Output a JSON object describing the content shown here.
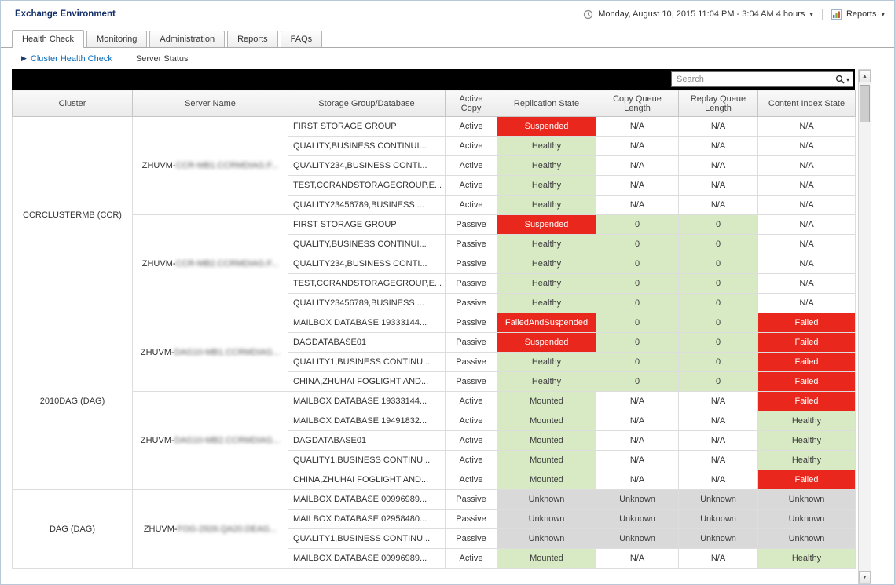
{
  "header": {
    "title": "Exchange Environment",
    "time_range": "Monday, August 10, 2015 11:04 PM - 3:04 AM 4 hours",
    "reports_label": "Reports"
  },
  "tabs": [
    {
      "label": "Health Check",
      "active": true
    },
    {
      "label": "Monitoring",
      "active": false
    },
    {
      "label": "Administration",
      "active": false
    },
    {
      "label": "Reports",
      "active": false
    },
    {
      "label": "FAQs",
      "active": false
    }
  ],
  "subnav": {
    "breadcrumb": "Cluster Health Check",
    "secondary": "Server Status"
  },
  "search": {
    "placeholder": "Search"
  },
  "colors": {
    "red": "#e9271c",
    "green": "#d8eac4",
    "gray": "#d9d9d9",
    "red_text": "#ffffff",
    "cell_text": "#3c3c3c"
  },
  "table": {
    "columns": [
      "Cluster",
      "Server Name",
      "Storage Group/Database",
      "Active Copy",
      "Replication State",
      "Copy Queue Length",
      "Replay Queue Length",
      "Content Index State"
    ],
    "clusters": [
      {
        "name": "CCRCLUSTERMB (CCR)",
        "servers": [
          {
            "prefix": "ZHUVM-",
            "masked": "CCR-MB1.CCRMDIAG.F...",
            "rows": [
              {
                "db": "FIRST STORAGE GROUP",
                "copy": "Active",
                "repl": [
                  "Suspended",
                  "red"
                ],
                "cq": [
                  "N/A",
                  "white"
                ],
                "rq": [
                  "N/A",
                  "white"
                ],
                "ci": [
                  "N/A",
                  "white"
                ]
              },
              {
                "db": "QUALITY,BUSINESS CONTINUI...",
                "copy": "Active",
                "repl": [
                  "Healthy",
                  "green"
                ],
                "cq": [
                  "N/A",
                  "white"
                ],
                "rq": [
                  "N/A",
                  "white"
                ],
                "ci": [
                  "N/A",
                  "white"
                ]
              },
              {
                "db": "QUALITY234,BUSINESS CONTI...",
                "copy": "Active",
                "repl": [
                  "Healthy",
                  "green"
                ],
                "cq": [
                  "N/A",
                  "white"
                ],
                "rq": [
                  "N/A",
                  "white"
                ],
                "ci": [
                  "N/A",
                  "white"
                ]
              },
              {
                "db": "TEST,CCRANDSTORAGEGROUP,E...",
                "copy": "Active",
                "repl": [
                  "Healthy",
                  "green"
                ],
                "cq": [
                  "N/A",
                  "white"
                ],
                "rq": [
                  "N/A",
                  "white"
                ],
                "ci": [
                  "N/A",
                  "white"
                ]
              },
              {
                "db": "QUALITY23456789,BUSINESS ...",
                "copy": "Active",
                "repl": [
                  "Healthy",
                  "green"
                ],
                "cq": [
                  "N/A",
                  "white"
                ],
                "rq": [
                  "N/A",
                  "white"
                ],
                "ci": [
                  "N/A",
                  "white"
                ]
              }
            ]
          },
          {
            "prefix": "ZHUVM-",
            "masked": "CCR-MB2.CCRMDIAG.F...",
            "rows": [
              {
                "db": "FIRST STORAGE GROUP",
                "copy": "Passive",
                "repl": [
                  "Suspended",
                  "red"
                ],
                "cq": [
                  "0",
                  "green"
                ],
                "rq": [
                  "0",
                  "green"
                ],
                "ci": [
                  "N/A",
                  "white"
                ]
              },
              {
                "db": "QUALITY,BUSINESS CONTINUI...",
                "copy": "Passive",
                "repl": [
                  "Healthy",
                  "green"
                ],
                "cq": [
                  "0",
                  "green"
                ],
                "rq": [
                  "0",
                  "green"
                ],
                "ci": [
                  "N/A",
                  "white"
                ]
              },
              {
                "db": "QUALITY234,BUSINESS CONTI...",
                "copy": "Passive",
                "repl": [
                  "Healthy",
                  "green"
                ],
                "cq": [
                  "0",
                  "green"
                ],
                "rq": [
                  "0",
                  "green"
                ],
                "ci": [
                  "N/A",
                  "white"
                ]
              },
              {
                "db": "TEST,CCRANDSTORAGEGROUP,E...",
                "copy": "Passive",
                "repl": [
                  "Healthy",
                  "green"
                ],
                "cq": [
                  "0",
                  "green"
                ],
                "rq": [
                  "0",
                  "green"
                ],
                "ci": [
                  "N/A",
                  "white"
                ]
              },
              {
                "db": "QUALITY23456789,BUSINESS ...",
                "copy": "Passive",
                "repl": [
                  "Healthy",
                  "green"
                ],
                "cq": [
                  "0",
                  "green"
                ],
                "rq": [
                  "0",
                  "green"
                ],
                "ci": [
                  "N/A",
                  "white"
                ]
              }
            ]
          }
        ]
      },
      {
        "name": "2010DAG (DAG)",
        "servers": [
          {
            "prefix": "ZHUVM-",
            "masked": "DAG10-MB1.CCRMDIAG...",
            "rows": [
              {
                "db": "MAILBOX DATABASE 19333144...",
                "copy": "Passive",
                "repl": [
                  "FailedAndSuspended",
                  "red"
                ],
                "cq": [
                  "0",
                  "green"
                ],
                "rq": [
                  "0",
                  "green"
                ],
                "ci": [
                  "Failed",
                  "red"
                ]
              },
              {
                "db": "DAGDATABASE01",
                "copy": "Passive",
                "repl": [
                  "Suspended",
                  "red"
                ],
                "cq": [
                  "0",
                  "green"
                ],
                "rq": [
                  "0",
                  "green"
                ],
                "ci": [
                  "Failed",
                  "red"
                ]
              },
              {
                "db": "QUALITY1,BUSINESS CONTINU...",
                "copy": "Passive",
                "repl": [
                  "Healthy",
                  "green"
                ],
                "cq": [
                  "0",
                  "green"
                ],
                "rq": [
                  "0",
                  "green"
                ],
                "ci": [
                  "Failed",
                  "red"
                ]
              },
              {
                "db": "CHINA,ZHUHAI FOGLIGHT AND...",
                "copy": "Passive",
                "repl": [
                  "Healthy",
                  "green"
                ],
                "cq": [
                  "0",
                  "green"
                ],
                "rq": [
                  "0",
                  "green"
                ],
                "ci": [
                  "Failed",
                  "red"
                ]
              }
            ]
          },
          {
            "prefix": "ZHUVM-",
            "masked": "DAG10-MB2.CCRMDIAG...",
            "rows": [
              {
                "db": "MAILBOX DATABASE 19333144...",
                "copy": "Active",
                "repl": [
                  "Mounted",
                  "green"
                ],
                "cq": [
                  "N/A",
                  "white"
                ],
                "rq": [
                  "N/A",
                  "white"
                ],
                "ci": [
                  "Failed",
                  "red"
                ]
              },
              {
                "db": "MAILBOX DATABASE 19491832...",
                "copy": "Active",
                "repl": [
                  "Mounted",
                  "green"
                ],
                "cq": [
                  "N/A",
                  "white"
                ],
                "rq": [
                  "N/A",
                  "white"
                ],
                "ci": [
                  "Healthy",
                  "green"
                ]
              },
              {
                "db": "DAGDATABASE01",
                "copy": "Active",
                "repl": [
                  "Mounted",
                  "green"
                ],
                "cq": [
                  "N/A",
                  "white"
                ],
                "rq": [
                  "N/A",
                  "white"
                ],
                "ci": [
                  "Healthy",
                  "green"
                ]
              },
              {
                "db": "QUALITY1,BUSINESS CONTINU...",
                "copy": "Active",
                "repl": [
                  "Mounted",
                  "green"
                ],
                "cq": [
                  "N/A",
                  "white"
                ],
                "rq": [
                  "N/A",
                  "white"
                ],
                "ci": [
                  "Healthy",
                  "green"
                ]
              },
              {
                "db": "CHINA,ZHUHAI FOGLIGHT AND...",
                "copy": "Active",
                "repl": [
                  "Mounted",
                  "green"
                ],
                "cq": [
                  "N/A",
                  "white"
                ],
                "rq": [
                  "N/A",
                  "white"
                ],
                "ci": [
                  "Failed",
                  "red"
                ]
              }
            ]
          }
        ]
      },
      {
        "name": "DAG (DAG)",
        "servers": [
          {
            "prefix": "ZHUVM-",
            "masked": "FOG-2926.QA20.DEAG...",
            "rows": [
              {
                "db": "MAILBOX DATABASE 00996989...",
                "copy": "Passive",
                "repl": [
                  "Unknown",
                  "gray"
                ],
                "cq": [
                  "Unknown",
                  "gray"
                ],
                "rq": [
                  "Unknown",
                  "gray"
                ],
                "ci": [
                  "Unknown",
                  "gray"
                ]
              },
              {
                "db": "MAILBOX DATABASE 02958480...",
                "copy": "Passive",
                "repl": [
                  "Unknown",
                  "gray"
                ],
                "cq": [
                  "Unknown",
                  "gray"
                ],
                "rq": [
                  "Unknown",
                  "gray"
                ],
                "ci": [
                  "Unknown",
                  "gray"
                ]
              },
              {
                "db": "QUALITY1,BUSINESS CONTINU...",
                "copy": "Passive",
                "repl": [
                  "Unknown",
                  "gray"
                ],
                "cq": [
                  "Unknown",
                  "gray"
                ],
                "rq": [
                  "Unknown",
                  "gray"
                ],
                "ci": [
                  "Unknown",
                  "gray"
                ]
              },
              {
                "db": "MAILBOX DATABASE 00996989...",
                "copy": "Active",
                "repl": [
                  "Mounted",
                  "green"
                ],
                "cq": [
                  "N/A",
                  "white"
                ],
                "rq": [
                  "N/A",
                  "white"
                ],
                "ci": [
                  "Healthy",
                  "green"
                ]
              }
            ]
          }
        ]
      }
    ]
  }
}
